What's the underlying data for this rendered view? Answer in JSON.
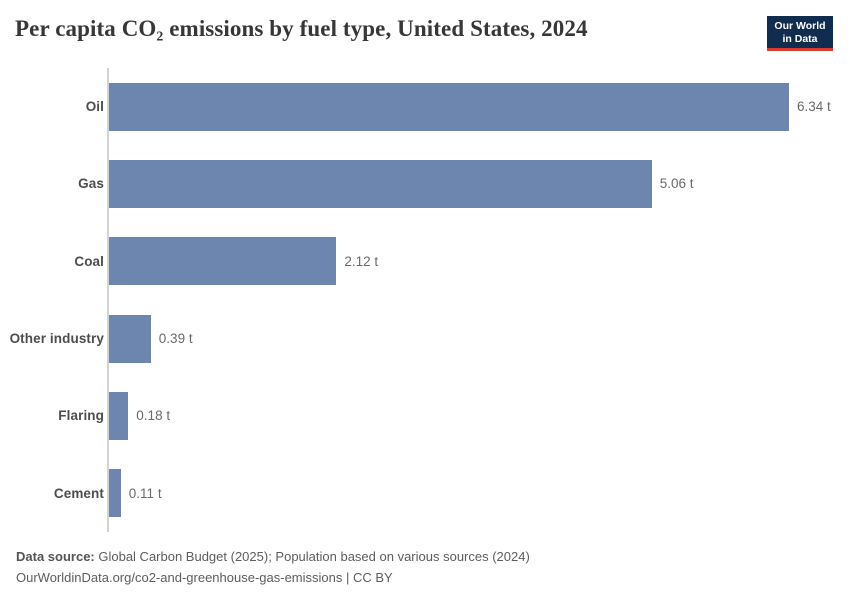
{
  "header": {
    "title": "Per capita CO₂ emissions by fuel type, United States, 2024",
    "logo": {
      "line1": "Our World",
      "line2": "in Data",
      "bg_color": "#102d50",
      "accent_color": "#dc3a2e"
    }
  },
  "chart_data": {
    "type": "bar",
    "orientation": "horizontal",
    "title": "Per capita CO₂ emissions by fuel type, United States, 2024",
    "categories": [
      "Oil",
      "Gas",
      "Coal",
      "Other industry",
      "Flaring",
      "Cement"
    ],
    "values": [
      6.34,
      5.06,
      2.12,
      0.39,
      0.18,
      0.11
    ],
    "value_labels": [
      "6.34 t",
      "5.06 t",
      "2.12 t",
      "0.39 t",
      "0.18 t",
      "0.11 t"
    ],
    "unit": "t",
    "xlim": [
      0,
      6.34
    ],
    "grid": false,
    "legend": "none",
    "bar_color": "#6d86b0",
    "axis_color": "#d2d2d2"
  },
  "footer": {
    "source_label": "Data source:",
    "source_text": " Global Carbon Budget (2025); Population based on various sources (2024)",
    "link_line": "OurWorldinData.org/co2-and-greenhouse-gas-emissions | CC BY"
  }
}
